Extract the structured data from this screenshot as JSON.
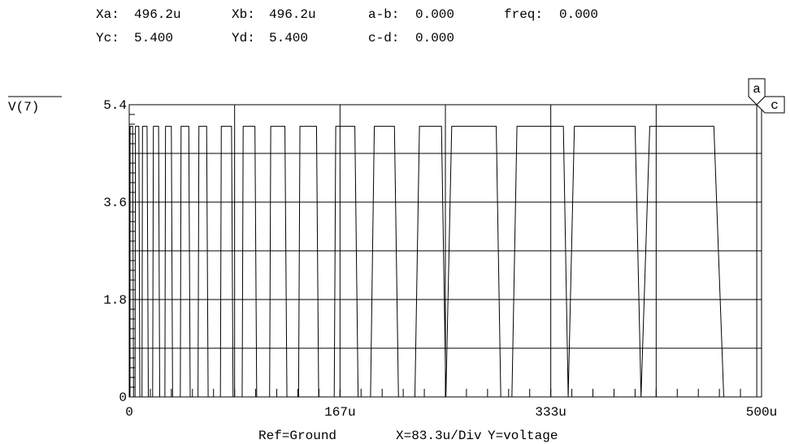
{
  "cursor_readout": {
    "row1": [
      {
        "label": "Xa:",
        "value": "496.2u"
      },
      {
        "label": "Xb:",
        "value": "496.2u"
      },
      {
        "label": "a-b:",
        "value": "0.000"
      },
      {
        "label": "freq:",
        "value": "0.000"
      }
    ],
    "row2": [
      {
        "label": "Yc:",
        "value": "5.400"
      },
      {
        "label": "Yd:",
        "value": "5.400"
      },
      {
        "label": "c-d:",
        "value": "0.000"
      }
    ],
    "cursor_a_marker": "a",
    "cursor_c_marker": "c"
  },
  "footer": {
    "ref": "Ref=Ground",
    "xdiv": "X=83.3u/Div",
    "ytype": "Y=voltage"
  },
  "chart_data": {
    "type": "line",
    "xlim": [
      0,
      500
    ],
    "ylim": [
      0,
      5.4
    ],
    "x_unit": "u",
    "x_ticks": [
      {
        "value": 0,
        "label": "0"
      },
      {
        "value": 166.7,
        "label": "167u"
      },
      {
        "value": 333.3,
        "label": "333u"
      },
      {
        "value": 500,
        "label": "500u"
      }
    ],
    "y_ticks": [
      {
        "value": 0,
        "label": "0"
      },
      {
        "value": 1.8,
        "label": "1.8"
      },
      {
        "value": 3.6,
        "label": "3.6"
      },
      {
        "value": 5.4,
        "label": "5.4"
      }
    ],
    "grid": true,
    "cursor_x": 496.2,
    "cursor_y": 5.4,
    "series": [
      {
        "name": "V(7)",
        "high": 5.0,
        "low": 0.0,
        "high_intervals": [
          [
            0.7,
            2.7
          ],
          [
            5.6,
            7.6
          ],
          [
            11.5,
            14.1
          ],
          [
            20.0,
            23.2
          ],
          [
            29.8,
            33.3
          ],
          [
            42.4,
            47.1
          ],
          [
            56.0,
            61.2
          ],
          [
            74.2,
            80.9
          ],
          [
            92.2,
            99.4
          ],
          [
            114.1,
            123.1
          ],
          [
            137.2,
            148.1
          ],
          [
            165.6,
            178.4
          ],
          [
            195.0,
            209.7
          ],
          [
            231.8,
            246.9
          ],
          [
            272.5,
            290.2
          ],
          [
            323.4,
            343.3
          ],
          [
            378.2,
            400.0
          ],
          [
            441.9,
            462.3
          ]
        ],
        "falls": [
          [
            3.1,
            3.4
          ],
          [
            8.0,
            8.4
          ],
          [
            14.6,
            15.1
          ],
          [
            23.6,
            24.1
          ],
          [
            33.8,
            34.3
          ],
          [
            47.6,
            48.2
          ],
          [
            61.7,
            62.4
          ],
          [
            81.4,
            82.1
          ],
          [
            99.9,
            100.8
          ],
          [
            123.6,
            124.7
          ],
          [
            148.6,
            149.8
          ],
          [
            178.9,
            181.0
          ],
          [
            210.2,
            212.9
          ],
          [
            247.4,
            250.4
          ],
          [
            290.7,
            293.8
          ],
          [
            343.8,
            347.1
          ],
          [
            400.5,
            404.7
          ],
          [
            462.8,
            470.1
          ]
        ],
        "low_intervals": [
          [
            3.4,
            4.6
          ],
          [
            8.4,
            10.1
          ],
          [
            15.1,
            18.5
          ],
          [
            24.1,
            28.2
          ],
          [
            34.3,
            40.4
          ],
          [
            48.2,
            54.4
          ],
          [
            62.4,
            72.1
          ],
          [
            82.1,
            89.3
          ],
          [
            100.8,
            111.0
          ],
          [
            124.7,
            133.9
          ],
          [
            149.8,
            162.1
          ],
          [
            181.0,
            190.8
          ],
          [
            212.9,
            225.9
          ],
          [
            250.4,
            250.4
          ],
          [
            293.8,
            302.6
          ],
          [
            347.1,
            347.1
          ],
          [
            404.7,
            404.7
          ],
          [
            470.1,
            470.1
          ]
        ],
        "rises": [
          [
            4.6,
            4.9
          ],
          [
            10.1,
            10.5
          ],
          [
            18.5,
            19.1
          ],
          [
            28.2,
            28.7
          ],
          [
            40.4,
            41.0
          ],
          [
            54.4,
            55.1
          ],
          [
            72.1,
            72.8
          ],
          [
            89.3,
            90.1
          ],
          [
            111.0,
            111.9
          ],
          [
            133.9,
            135.0
          ],
          [
            162.1,
            163.3
          ],
          [
            190.8,
            193.8
          ],
          [
            225.9,
            229.5
          ],
          [
            250.4,
            255.0
          ],
          [
            302.6,
            306.6
          ],
          [
            347.1,
            352.0
          ],
          [
            404.7,
            411.6
          ]
        ]
      }
    ]
  }
}
